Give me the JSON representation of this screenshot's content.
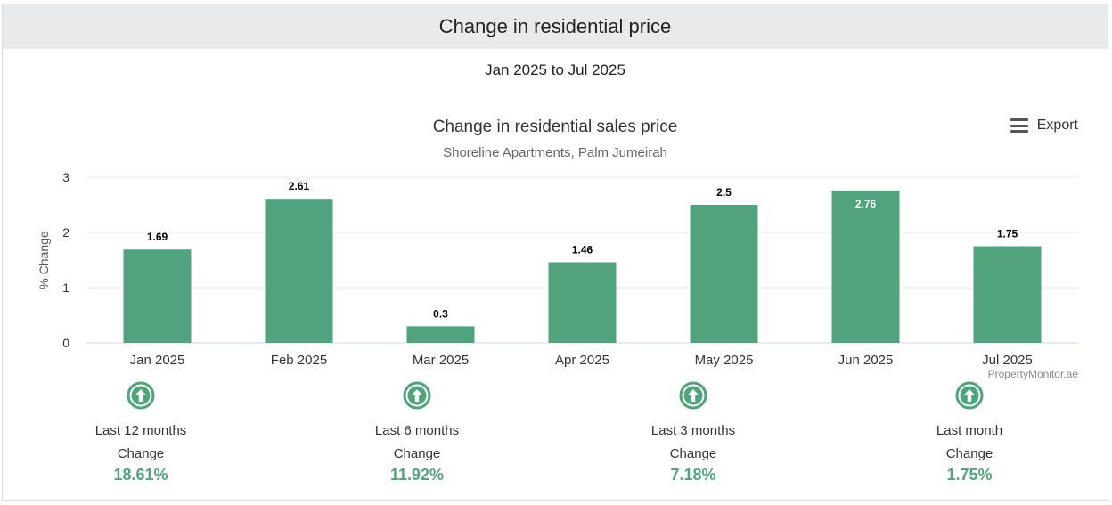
{
  "header": {
    "title": "Change in residential price"
  },
  "range_label": "Jan 2025 to Jul 2025",
  "export_label": "Export",
  "chart_data": {
    "type": "bar",
    "title": "Change in residential sales price",
    "subtitle": "Shoreline Apartments, Palm Jumeirah",
    "ylabel": "% Change",
    "xlabel": "",
    "categories": [
      "Jan 2025",
      "Feb 2025",
      "Mar 2025",
      "Apr 2025",
      "May 2025",
      "Jun 2025",
      "Jul 2025"
    ],
    "values": [
      1.69,
      2.61,
      0.3,
      1.46,
      2.5,
      2.76,
      1.75
    ],
    "data_labels": [
      "1.69",
      "2.61",
      "0.3",
      "1.46",
      "2.5",
      "2.76",
      "1.75"
    ],
    "yticks": [
      0,
      1,
      2,
      3
    ],
    "ylim": [
      0,
      3
    ],
    "grid": true,
    "bar_color": "#50a37c",
    "credit": "PropertyMonitor.ae"
  },
  "summary": [
    {
      "period": "Last 12 months",
      "label": "Change",
      "value": "18.61%",
      "direction": "up-arrow-icon"
    },
    {
      "period": "Last 6 months",
      "label": "Change",
      "value": "11.92%",
      "direction": "up-arrow-icon"
    },
    {
      "period": "Last 3 months",
      "label": "Change",
      "value": "7.18%",
      "direction": "up-arrow-icon"
    },
    {
      "period": "Last month",
      "label": "Change",
      "value": "1.75%",
      "direction": "up-arrow-icon"
    }
  ]
}
